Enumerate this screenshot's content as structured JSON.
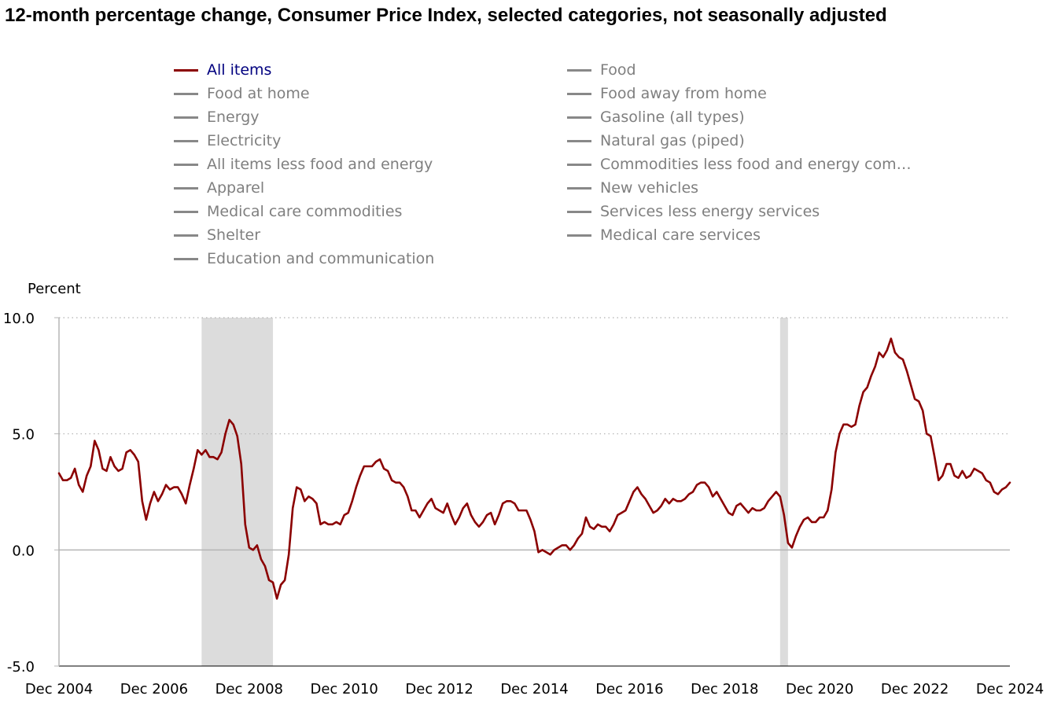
{
  "chart_data": {
    "type": "line",
    "title": "12-month percentage change, Consumer Price Index, selected categories, not seasonally adjusted",
    "ylabel": "Percent",
    "xlabel": "",
    "ylim": [
      -5,
      10
    ],
    "yticks": [
      "10.0",
      "5.0",
      "0.0",
      "-5.0"
    ],
    "ytick_values": [
      10,
      5,
      0,
      -5
    ],
    "xticks": [
      "Dec 2004",
      "Dec 2006",
      "Dec 2008",
      "Dec 2010",
      "Dec 2012",
      "Dec 2014",
      "Dec 2016",
      "Dec 2018",
      "Dec 2020",
      "Dec 2022",
      "Dec 2024"
    ],
    "grid": "horizontal-dotted",
    "legend_placement": "top",
    "recessions": [
      {
        "start": "Dec 2007",
        "end": "Jun 2009"
      },
      {
        "start": "Feb 2020",
        "end": "Apr 2020"
      }
    ],
    "legend": [
      {
        "name": "All items",
        "color": "#8b0000",
        "active": true
      },
      {
        "name": "Food",
        "color": "#888888",
        "active": false
      },
      {
        "name": "Food at home",
        "color": "#888888",
        "active": false
      },
      {
        "name": "Food away from home",
        "color": "#888888",
        "active": false
      },
      {
        "name": "Energy",
        "color": "#888888",
        "active": false
      },
      {
        "name": "Gasoline (all types)",
        "color": "#888888",
        "active": false
      },
      {
        "name": "Electricity",
        "color": "#888888",
        "active": false
      },
      {
        "name": "Natural gas (piped)",
        "color": "#888888",
        "active": false
      },
      {
        "name": "All items less food and energy",
        "color": "#888888",
        "active": false
      },
      {
        "name": "Commodities less food and energy com…",
        "color": "#888888",
        "active": false
      },
      {
        "name": "Apparel",
        "color": "#888888",
        "active": false
      },
      {
        "name": "New vehicles",
        "color": "#888888",
        "active": false
      },
      {
        "name": "Medical care commodities",
        "color": "#888888",
        "active": false
      },
      {
        "name": "Services less energy services",
        "color": "#888888",
        "active": false
      },
      {
        "name": "Shelter",
        "color": "#888888",
        "active": false
      },
      {
        "name": "Medical care services",
        "color": "#888888",
        "active": false
      },
      {
        "name": "Education and communication",
        "color": "#888888",
        "active": false
      }
    ],
    "series": [
      {
        "name": "All items",
        "color": "#8b0000",
        "x_start": "Dec 2004",
        "x_end": "Dec 2024",
        "frequency": "monthly",
        "values": [
          3.3,
          3.0,
          3.0,
          3.1,
          3.5,
          2.8,
          2.5,
          3.2,
          3.6,
          4.7,
          4.3,
          3.5,
          3.4,
          4.0,
          3.6,
          3.4,
          3.5,
          4.2,
          4.3,
          4.1,
          3.8,
          2.1,
          1.3,
          2.0,
          2.5,
          2.1,
          2.4,
          2.8,
          2.6,
          2.7,
          2.7,
          2.4,
          2.0,
          2.8,
          3.5,
          4.3,
          4.1,
          4.3,
          4.0,
          4.0,
          3.9,
          4.2,
          5.0,
          5.6,
          5.4,
          4.9,
          3.7,
          1.1,
          0.1,
          0.0,
          0.2,
          -0.4,
          -0.7,
          -1.3,
          -1.4,
          -2.1,
          -1.5,
          -1.3,
          -0.2,
          1.8,
          2.7,
          2.6,
          2.1,
          2.3,
          2.2,
          2.0,
          1.1,
          1.2,
          1.1,
          1.1,
          1.2,
          1.1,
          1.5,
          1.6,
          2.1,
          2.7,
          3.2,
          3.6,
          3.6,
          3.6,
          3.8,
          3.9,
          3.5,
          3.4,
          3.0,
          2.9,
          2.9,
          2.7,
          2.3,
          1.7,
          1.7,
          1.4,
          1.7,
          2.0,
          2.2,
          1.8,
          1.7,
          1.6,
          2.0,
          1.5,
          1.1,
          1.4,
          1.8,
          2.0,
          1.5,
          1.2,
          1.0,
          1.2,
          1.5,
          1.6,
          1.1,
          1.5,
          2.0,
          2.1,
          2.1,
          2.0,
          1.7,
          1.7,
          1.7,
          1.3,
          0.8,
          -0.1,
          0.0,
          -0.1,
          -0.2,
          0.0,
          0.1,
          0.2,
          0.2,
          0.0,
          0.2,
          0.5,
          0.7,
          1.4,
          1.0,
          0.9,
          1.1,
          1.0,
          1.0,
          0.8,
          1.1,
          1.5,
          1.6,
          1.7,
          2.1,
          2.5,
          2.7,
          2.4,
          2.2,
          1.9,
          1.6,
          1.7,
          1.9,
          2.2,
          2.0,
          2.2,
          2.1,
          2.1,
          2.2,
          2.4,
          2.5,
          2.8,
          2.9,
          2.9,
          2.7,
          2.3,
          2.5,
          2.2,
          1.9,
          1.6,
          1.5,
          1.9,
          2.0,
          1.8,
          1.6,
          1.8,
          1.7,
          1.7,
          1.8,
          2.1,
          2.3,
          2.5,
          2.3,
          1.5,
          0.3,
          0.1,
          0.6,
          1.0,
          1.3,
          1.4,
          1.2,
          1.2,
          1.4,
          1.4,
          1.7,
          2.6,
          4.2,
          5.0,
          5.4,
          5.4,
          5.3,
          5.4,
          6.2,
          6.8,
          7.0,
          7.5,
          7.9,
          8.5,
          8.3,
          8.6,
          9.1,
          8.5,
          8.3,
          8.2,
          7.7,
          7.1,
          6.5,
          6.4,
          6.0,
          5.0,
          4.9,
          4.0,
          3.0,
          3.2,
          3.7,
          3.7,
          3.2,
          3.1,
          3.4,
          3.1,
          3.2,
          3.5,
          3.4,
          3.3,
          3.0,
          2.9,
          2.5,
          2.4,
          2.6,
          2.7,
          2.9
        ]
      }
    ]
  }
}
